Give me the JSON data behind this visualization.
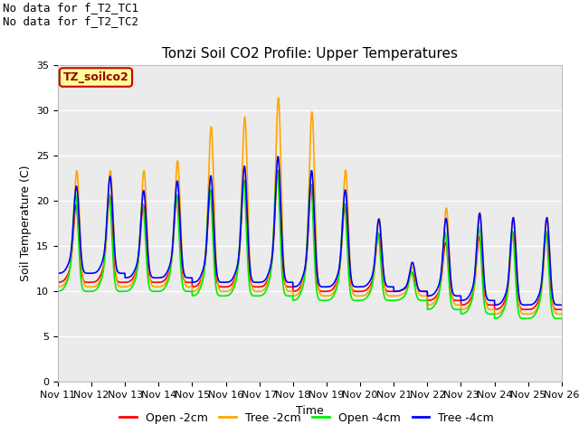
{
  "title": "Tonzi Soil CO2 Profile: Upper Temperatures",
  "xlabel": "Time",
  "ylabel": "Soil Temperature (C)",
  "annotation_lines": [
    "No data for f_T2_TC1",
    "No data for f_T2_TC2"
  ],
  "dataset_label": "TZ_soilco2",
  "ylim": [
    0,
    35
  ],
  "yticks": [
    0,
    5,
    10,
    15,
    20,
    25,
    30,
    35
  ],
  "x_tick_labels": [
    "Nov 11",
    "Nov 12",
    "Nov 13",
    "Nov 14",
    "Nov 15",
    "Nov 16",
    "Nov 17",
    "Nov 18",
    "Nov 19",
    "Nov 20",
    "Nov 21",
    "Nov 22",
    "Nov 23",
    "Nov 24",
    "Nov 25",
    "Nov 26"
  ],
  "series": {
    "open_2cm": {
      "color": "#FF0000",
      "label": "Open -2cm",
      "linewidth": 1.2
    },
    "tree_2cm": {
      "color": "#FFA500",
      "label": "Tree -2cm",
      "linewidth": 1.2
    },
    "open_4cm": {
      "color": "#00EE00",
      "label": "Open -4cm",
      "linewidth": 1.2
    },
    "tree_4cm": {
      "color": "#0000FF",
      "label": "Tree -4cm",
      "linewidth": 1.2
    }
  },
  "plot_bg_color": "#EBEBEB",
  "grid_color": "#FFFFFF",
  "box_color": "#FFFF99",
  "box_edge_color": "#CC0000",
  "box_text_color": "#990000",
  "annotation_fontsize": 9,
  "title_fontsize": 11,
  "tick_fontsize": 8,
  "axis_label_fontsize": 9,
  "legend_fontsize": 9
}
